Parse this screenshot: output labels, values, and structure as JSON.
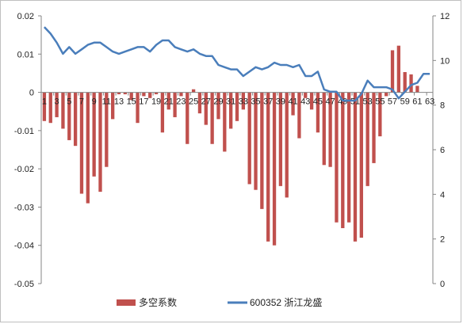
{
  "chart_data": {
    "type": "bar-line-combo",
    "title": "",
    "xlabel": "",
    "ylabel": "",
    "x": [
      1,
      2,
      3,
      4,
      5,
      6,
      7,
      8,
      9,
      10,
      11,
      12,
      13,
      14,
      15,
      16,
      17,
      18,
      19,
      20,
      21,
      22,
      23,
      24,
      25,
      26,
      27,
      28,
      29,
      30,
      31,
      32,
      33,
      34,
      35,
      36,
      37,
      38,
      39,
      40,
      41,
      42,
      43,
      44,
      45,
      46,
      47,
      48,
      49,
      50,
      51,
      52,
      53,
      54,
      55,
      56,
      57,
      58,
      59,
      60,
      61,
      62,
      63
    ],
    "x_tick_labels": [
      "1",
      "3",
      "5",
      "7",
      "9",
      "11",
      "13",
      "15",
      "17",
      "19",
      "21",
      "23",
      "25",
      "27",
      "29",
      "31",
      "33",
      "35",
      "37",
      "39",
      "41",
      "43",
      "45",
      "47",
      "49",
      "51",
      "53",
      "55",
      "57",
      "59",
      "61",
      "63"
    ],
    "y_left": {
      "ylim": [
        -0.05,
        0.02
      ],
      "ticks": [
        "0.02",
        "0.01",
        "0",
        "-0.01",
        "-0.02",
        "-0.03",
        "-0.04",
        "-0.05"
      ],
      "tick_values": [
        0.02,
        0.01,
        0,
        -0.01,
        -0.02,
        -0.03,
        -0.04,
        -0.05
      ]
    },
    "y_right": {
      "ylim": [
        0,
        12
      ],
      "ticks": [
        "12",
        "10",
        "8",
        "6",
        "4",
        "2",
        "0"
      ],
      "tick_values": [
        12,
        10,
        8,
        6,
        4,
        2,
        0
      ]
    },
    "grid": false,
    "legend_position": "bottom",
    "series": [
      {
        "name": "多空系数",
        "type": "bar",
        "axis": "left",
        "color": "#c0504d",
        "values": [
          -0.0075,
          -0.008,
          -0.0065,
          -0.0095,
          -0.0125,
          -0.014,
          -0.0265,
          -0.029,
          -0.022,
          -0.026,
          -0.0195,
          -0.007,
          -0.0005,
          -0.0005,
          -0.002,
          -0.008,
          -0.001,
          -0.0015,
          -0.0005,
          -0.0105,
          -0.0045,
          -0.0065,
          -0.001,
          -0.0135,
          0.0008,
          -0.0055,
          -0.0085,
          -0.0135,
          -0.007,
          -0.0155,
          -0.0095,
          -0.0075,
          -0.0045,
          -0.024,
          -0.0255,
          -0.0305,
          -0.039,
          -0.04,
          -0.0245,
          -0.0275,
          -0.006,
          -0.012,
          -0.0015,
          -0.0045,
          -0.0105,
          -0.019,
          -0.0195,
          -0.034,
          -0.0355,
          -0.034,
          -0.039,
          -0.038,
          -0.0245,
          -0.0185,
          -0.0115,
          -0.001,
          0.011,
          0.0122,
          0.0053,
          0.0047,
          0.0017,
          0,
          0
        ]
      },
      {
        "name": "600352 浙江龙盛",
        "type": "line",
        "axis": "right",
        "color": "#4a7ebb",
        "values": [
          11.5,
          11.2,
          10.8,
          10.3,
          10.6,
          10.3,
          10.5,
          10.7,
          10.8,
          10.8,
          10.6,
          10.4,
          10.3,
          10.4,
          10.5,
          10.6,
          10.6,
          10.4,
          10.7,
          10.9,
          10.9,
          10.6,
          10.5,
          10.4,
          10.5,
          10.3,
          10.2,
          10.2,
          9.8,
          9.7,
          9.6,
          9.6,
          9.3,
          9.5,
          9.7,
          9.6,
          9.7,
          9.9,
          9.8,
          9.8,
          9.7,
          9.8,
          9.3,
          9.3,
          9.5,
          8.7,
          8.6,
          8.6,
          8.2,
          8.2,
          8.2,
          8.5,
          9.1,
          8.8,
          8.8,
          8.8,
          8.7,
          8.3,
          8.6,
          8.9,
          9.0,
          9.4,
          9.4
        ]
      }
    ]
  }
}
